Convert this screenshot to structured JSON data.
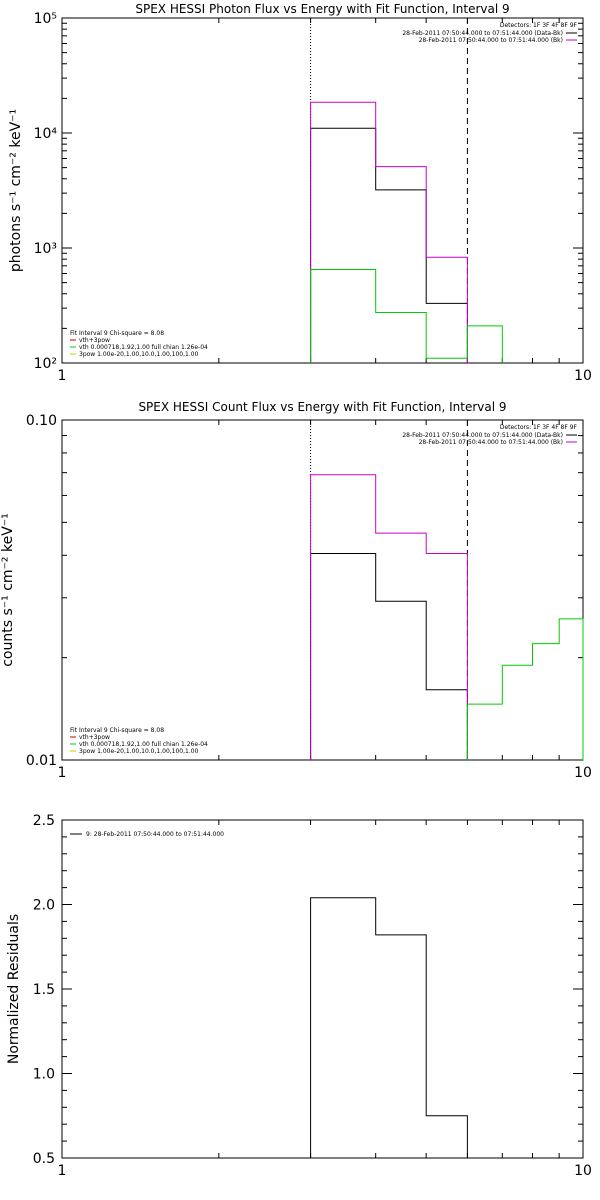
{
  "chart_data": [
    {
      "type": "line",
      "title": "SPEX HESSI Photon Flux vs Energy with Fit Function, Interval 9",
      "xlabel": "",
      "ylabel": "photons s⁻¹ cm⁻² keV⁻¹",
      "xscale": "log",
      "yscale": "log",
      "xlim": [
        1,
        10
      ],
      "ylim": [
        100,
        100000
      ],
      "x_tick_labels": [
        "1",
        "10"
      ],
      "y_tick_labels": [
        "10²",
        "10³",
        "10⁴",
        "10⁵"
      ],
      "markers": [
        {
          "x": 3.0,
          "style": "dotted"
        },
        {
          "x": 6.0,
          "style": "dashed"
        }
      ],
      "legend_header": "Detectors: 1F 3F 4F 8F 9F",
      "legend_position": "top-right",
      "legend": [
        {
          "text": "28-Feb-2011 07:50:44.000 to 07:51:44.000 (Data-Bk)",
          "color": "#000000"
        },
        {
          "text": "28-Feb-2011 07:50:44.000 to 07:51:44.000 (Bk)",
          "color": "#cc00cc"
        }
      ],
      "fit_info": {
        "header": "Fit Interval 9   Chi-square = 8.08",
        "color": "#000000",
        "items": [
          {
            "text": "vth+3pow",
            "color": "#cc0000"
          },
          {
            "text": "vth 0.000718,1.92,1.00   full chian 1.26e-04",
            "color": "#00cc00"
          },
          {
            "text": "3pow 1.00e-20,1.00,10.0,1.00,100,1.00",
            "color": "#cccc00"
          }
        ]
      },
      "series": [
        {
          "name": "28-Feb-2011 07:50:44.000 to 07:51:44.000 (Data-Bk)",
          "color": "#000000",
          "edges": [
            3,
            4,
            5,
            6
          ],
          "values": [
            11000,
            3200,
            330
          ]
        },
        {
          "name": "28-Feb-2011 07:50:44.000 to 07:51:44.000 (Bk)",
          "color": "#cc00cc",
          "edges": [
            3,
            4,
            5,
            6
          ],
          "values": [
            18500,
            5100,
            830
          ]
        },
        {
          "name": "vth",
          "color": "#00cc00",
          "edges": [
            3,
            4,
            5,
            6,
            7
          ],
          "values": [
            650,
            275,
            110,
            210
          ]
        }
      ]
    },
    {
      "type": "line",
      "title": "SPEX HESSI Count Flux vs Energy with Fit Function, Interval 9",
      "xlabel": "",
      "ylabel": "counts s⁻¹ cm⁻² keV⁻¹",
      "xscale": "log",
      "yscale": "log",
      "xlim": [
        1,
        10
      ],
      "ylim": [
        0.01,
        0.1
      ],
      "x_tick_labels": [
        "1",
        "10"
      ],
      "y_tick_labels": [
        "0.01",
        "0.10"
      ],
      "markers": [
        {
          "x": 3.0,
          "style": "dotted"
        },
        {
          "x": 6.0,
          "style": "dashed"
        }
      ],
      "legend_header": "Detectors: 1F 3F 4F 8F 9F",
      "legend_position": "top-right",
      "legend": [
        {
          "text": "28-Feb-2011 07:50:44.000 to 07:51:44.000 (Data-Bk)",
          "color": "#000000"
        },
        {
          "text": "28-Feb-2011 07:50:44.000 to 07:51:44.000 (Bk)",
          "color": "#cc00cc"
        }
      ],
      "fit_info": {
        "header": "Fit Interval 9   Chi-square = 8.08",
        "color": "#000000",
        "items": [
          {
            "text": "vth+3pow",
            "color": "#cc0000"
          },
          {
            "text": "vth 0.000718,1.92,1.00   full chian 1.26e-04",
            "color": "#00cc00"
          },
          {
            "text": "3pow 1.00e-20,1.00,10.0,1.00,100,1.00",
            "color": "#cccc00"
          }
        ]
      },
      "series": [
        {
          "name": "28-Feb-2011 07:50:44.000 to 07:51:44.000 (Data-Bk)",
          "color": "#000000",
          "edges": [
            3,
            4,
            5,
            6
          ],
          "values": [
            0.0405,
            0.0293,
            0.0161
          ]
        },
        {
          "name": "28-Feb-2011 07:50:44.000 to 07:51:44.000 (Bk)",
          "color": "#cc00cc",
          "edges": [
            3,
            4,
            5,
            6
          ],
          "values": [
            0.069,
            0.0465,
            0.0405
          ]
        },
        {
          "name": "vth",
          "color": "#00cc00",
          "edges": [
            6,
            7,
            8,
            9,
            10
          ],
          "values": [
            0.0146,
            0.019,
            0.022,
            0.026
          ]
        }
      ]
    },
    {
      "type": "line",
      "title": "",
      "xlabel": "",
      "ylabel": "Normalized Residuals",
      "xscale": "log",
      "yscale": "linear",
      "xlim": [
        1,
        10
      ],
      "ylim": [
        0.5,
        2.5
      ],
      "x_tick_labels": [
        "1",
        "10"
      ],
      "y_tick_labels": [
        "0.5",
        "1.0",
        "1.5",
        "2.0",
        "2.5"
      ],
      "legend_position": "top-left",
      "legend": [
        {
          "text": "9: 28-Feb-2011 07:50:44.000 to 07:51:44.000",
          "color": "#000000"
        }
      ],
      "series": [
        {
          "name": "9: 28-Feb-2011 07:50:44.000 to 07:51:44.000",
          "color": "#000000",
          "edges": [
            3,
            4,
            5,
            6
          ],
          "values": [
            2.04,
            1.82,
            0.75
          ]
        }
      ]
    }
  ]
}
